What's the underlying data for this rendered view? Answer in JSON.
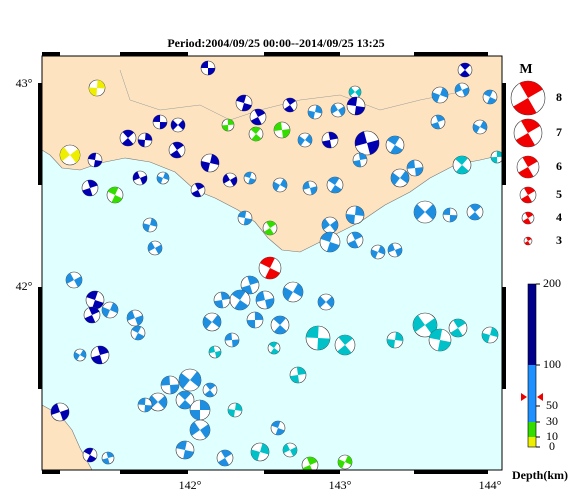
{
  "title": "Period:2004/09/25 00:00--2014/09/25 13:25",
  "longitude_labels": [
    "142°",
    "143°",
    "144°"
  ],
  "latitude_labels": [
    "43°",
    "42°"
  ],
  "magnitude_legend": {
    "title": "M",
    "labels": [
      "8",
      "7",
      "6",
      "5",
      "4",
      "3"
    ]
  },
  "depth_scale": {
    "title": "Depth(km)",
    "labels": [
      "200",
      "100",
      "50",
      "30",
      "10",
      "0"
    ]
  }
}
